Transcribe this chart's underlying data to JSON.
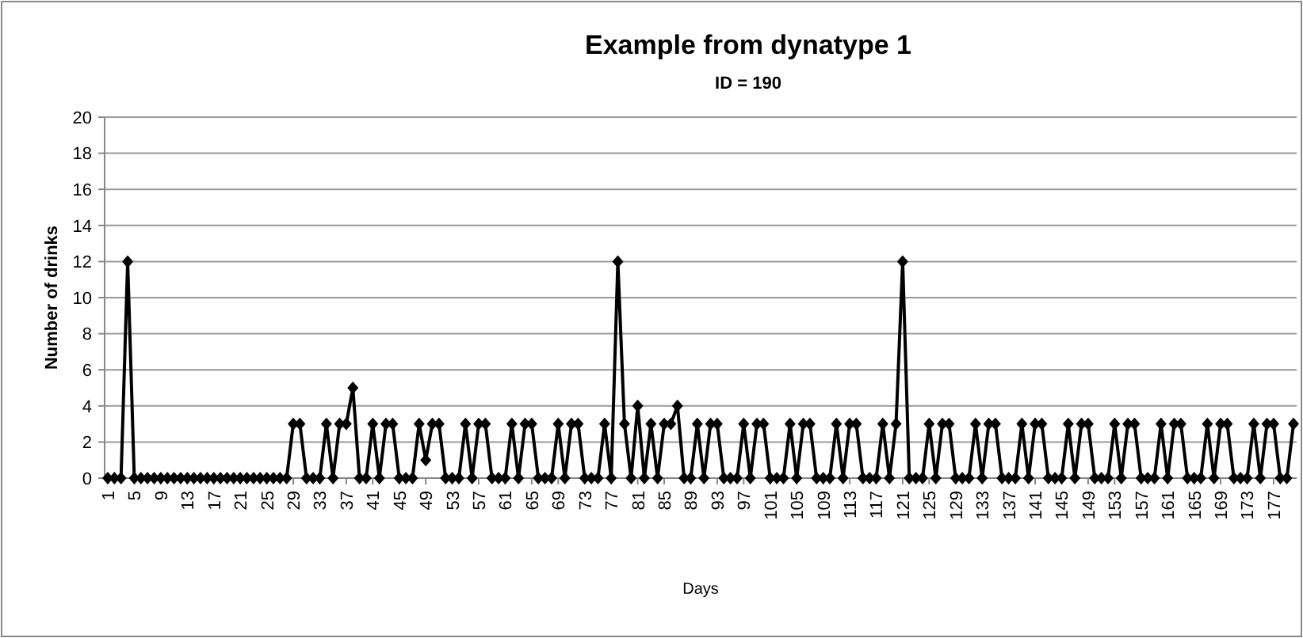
{
  "chart_data": {
    "type": "line",
    "title": "Example from dynatype  1",
    "subtitle": "ID = 190",
    "xlabel": "Days",
    "ylabel": "Number of drinks",
    "categories": [
      "1",
      null,
      null,
      null,
      "5",
      null,
      null,
      null,
      "9",
      null,
      null,
      null,
      "13",
      null,
      null,
      null,
      "17",
      null,
      null,
      null,
      "21",
      null,
      null,
      null,
      "25",
      null,
      null,
      null,
      "29",
      null,
      null,
      null,
      "33",
      null,
      null,
      null,
      "37",
      null,
      null,
      null,
      "41",
      null,
      null,
      null,
      "45",
      null,
      null,
      null,
      "49",
      null,
      null,
      null,
      "53",
      null,
      null,
      null,
      "57",
      null,
      null,
      null,
      "61",
      null,
      null,
      null,
      "65",
      null,
      null,
      null,
      "69",
      null,
      null,
      null,
      "73",
      null,
      null,
      null,
      "77",
      null,
      null,
      null,
      "81",
      null,
      null,
      null,
      "85",
      null,
      null,
      null,
      "89",
      null,
      null,
      null,
      "93",
      null,
      null,
      null,
      "97",
      null,
      null,
      null,
      "101",
      null,
      null,
      null,
      "105",
      null,
      null,
      null,
      "109",
      null,
      null,
      null,
      "113",
      null,
      null,
      null,
      "117",
      null,
      null,
      null,
      "121",
      null,
      null,
      null,
      "125",
      null,
      null,
      null,
      "129",
      null,
      null,
      null,
      "133",
      null,
      null,
      null,
      "137",
      null,
      null,
      null,
      "141",
      null,
      null,
      null,
      "145",
      null,
      null,
      null,
      "149",
      null,
      null,
      null,
      "153",
      null,
      null,
      null,
      "157",
      null,
      null,
      null,
      "161",
      null,
      null,
      null,
      "165",
      null,
      null,
      null,
      "169",
      null,
      null,
      null,
      "173",
      null,
      null,
      null,
      "177",
      null,
      null,
      null
    ],
    "series": [
      {
        "color": "#000000",
        "values": [
          0,
          0,
          0,
          12,
          0,
          0,
          0,
          0,
          0,
          0,
          0,
          0,
          0,
          0,
          0,
          0,
          0,
          0,
          0,
          0,
          0,
          0,
          0,
          0,
          0,
          0,
          0,
          0,
          3,
          3,
          0,
          0,
          0,
          3,
          0,
          3,
          3,
          5,
          0,
          0,
          3,
          0,
          3,
          3,
          0,
          0,
          0,
          3,
          1,
          3,
          3,
          0,
          0,
          0,
          3,
          0,
          3,
          3,
          0,
          0,
          0,
          3,
          0,
          3,
          3,
          0,
          0,
          0,
          3,
          0,
          3,
          3,
          0,
          0,
          0,
          3,
          0,
          12,
          3,
          0,
          4,
          0,
          3,
          0,
          3,
          3,
          4,
          0,
          0,
          3,
          0,
          3,
          3,
          0,
          0,
          0,
          3,
          0,
          3,
          3,
          0,
          0,
          0,
          3,
          0,
          3,
          3,
          0,
          0,
          0,
          3,
          0,
          3,
          3,
          0,
          0,
          0,
          3,
          0,
          3,
          12,
          0,
          0,
          0,
          3,
          0,
          3,
          3,
          0,
          0,
          0,
          3,
          0,
          3,
          3,
          0,
          0,
          0,
          3,
          0,
          3,
          3,
          0,
          0,
          0,
          3,
          0,
          3,
          3,
          0,
          0,
          0,
          3,
          0,
          3,
          3,
          0,
          0,
          0,
          3,
          0,
          3,
          3,
          0,
          0,
          0,
          3,
          0,
          3,
          3,
          0,
          0,
          0,
          3,
          0,
          3,
          3,
          0,
          0,
          3
        ]
      }
    ],
    "ylim": [
      0,
      20
    ],
    "yticks": [
      0,
      2,
      4,
      6,
      8,
      10,
      12,
      14,
      16,
      18,
      20
    ],
    "grid": "y",
    "marker": "diamond",
    "line_style": "solid"
  }
}
